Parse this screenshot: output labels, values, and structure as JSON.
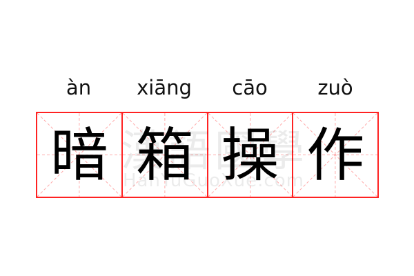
{
  "words": [
    {
      "pinyin": "àn",
      "char": "暗"
    },
    {
      "pinyin": "xiāng",
      "char": "箱"
    },
    {
      "pinyin": "cāo",
      "char": "操"
    },
    {
      "pinyin": "zuò",
      "char": "作"
    }
  ],
  "watermark": {
    "chinese": "漢語國學",
    "latin": "HanYuGuoXue.com"
  },
  "colors": {
    "grid": "#ff2222",
    "guide": "#ffaaaa"
  }
}
